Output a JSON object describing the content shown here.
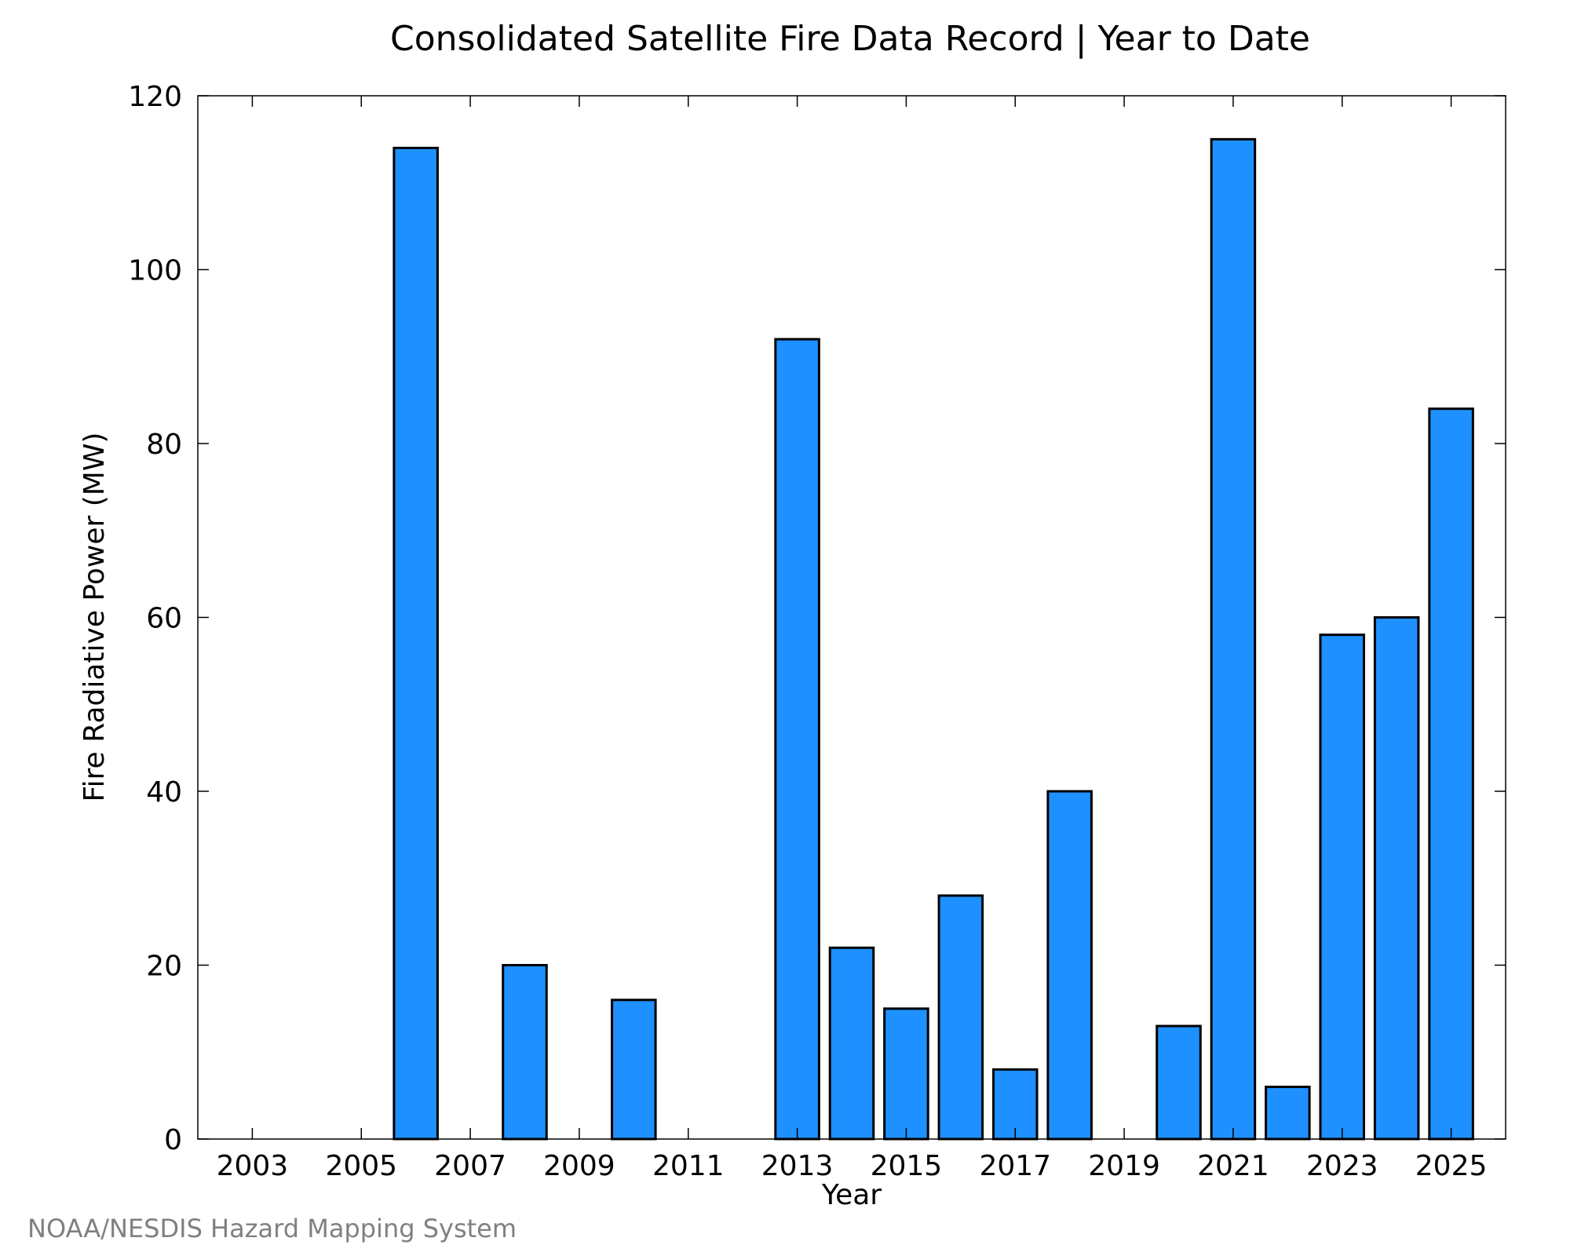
{
  "colors": {
    "bar_fill": "#1e90ff",
    "bar_stroke": "#000000",
    "credit_text": "#808080"
  },
  "credit": "NOAA/NESDIS Hazard Mapping System",
  "chart_data": {
    "type": "bar",
    "title": "Consolidated Satellite Fire Data Record | Year to Date",
    "xlabel": "Year",
    "ylabel": "Fire Radiative Power (MW)",
    "categories": [
      2003,
      2004,
      2005,
      2006,
      2007,
      2008,
      2009,
      2010,
      2011,
      2012,
      2013,
      2014,
      2015,
      2016,
      2017,
      2018,
      2019,
      2020,
      2021,
      2022,
      2023,
      2024,
      2025
    ],
    "values": [
      0,
      0,
      0,
      114,
      0,
      20,
      0,
      16,
      0,
      0,
      92,
      22,
      15,
      28,
      8,
      40,
      0,
      13,
      115,
      6,
      58,
      60,
      84
    ],
    "x_tick_labels": [
      "2003",
      "2005",
      "2007",
      "2009",
      "2011",
      "2013",
      "2015",
      "2017",
      "2019",
      "2021",
      "2023",
      "2025"
    ],
    "y_ticks": [
      0,
      20,
      40,
      60,
      80,
      100,
      120
    ],
    "ylim": [
      0,
      120
    ],
    "xlim": [
      2002,
      2026
    ],
    "grid": false,
    "legend": "none"
  }
}
